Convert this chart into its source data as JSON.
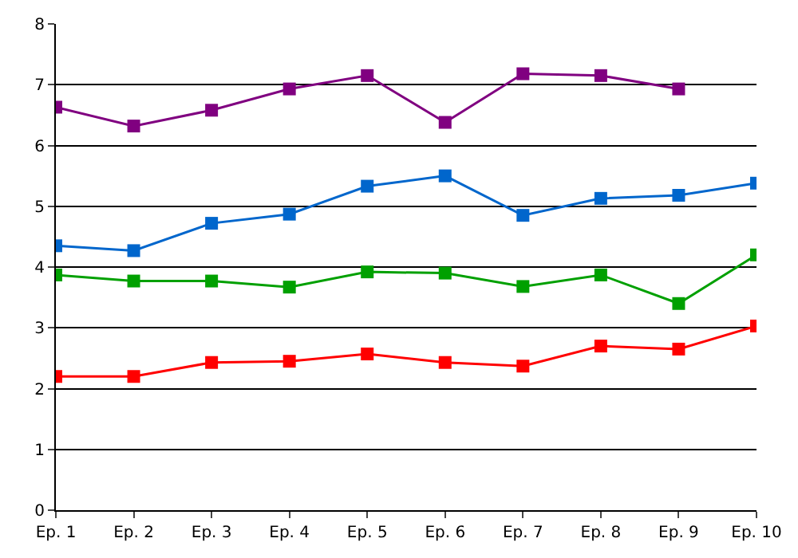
{
  "chart_data": {
    "type": "line",
    "categories": [
      "Ep. 1",
      "Ep. 2",
      "Ep. 3",
      "Ep. 4",
      "Ep. 5",
      "Ep. 6",
      "Ep. 7",
      "Ep. 8",
      "Ep. 9",
      "Ep. 10"
    ],
    "series": [
      {
        "color": "#800080",
        "values": [
          6.63,
          6.32,
          6.58,
          6.93,
          7.15,
          6.38,
          7.18,
          7.15,
          6.93,
          null
        ]
      },
      {
        "color": "#0066cc",
        "values": [
          4.35,
          4.27,
          4.72,
          4.87,
          5.33,
          5.5,
          4.85,
          5.13,
          5.18,
          5.38
        ]
      },
      {
        "color": "#00a000",
        "values": [
          3.87,
          3.77,
          3.77,
          3.67,
          3.92,
          3.9,
          3.68,
          3.87,
          3.4,
          4.2
        ]
      },
      {
        "color": "#ff0000",
        "values": [
          2.2,
          2.2,
          2.43,
          2.45,
          2.57,
          2.43,
          2.37,
          2.7,
          2.65,
          3.03
        ]
      }
    ],
    "ylim": [
      0,
      8
    ],
    "yticks": [
      0,
      1,
      2,
      3,
      4,
      5,
      6,
      7,
      8
    ],
    "grid": "y",
    "marker": "square",
    "line_style": "solid"
  }
}
